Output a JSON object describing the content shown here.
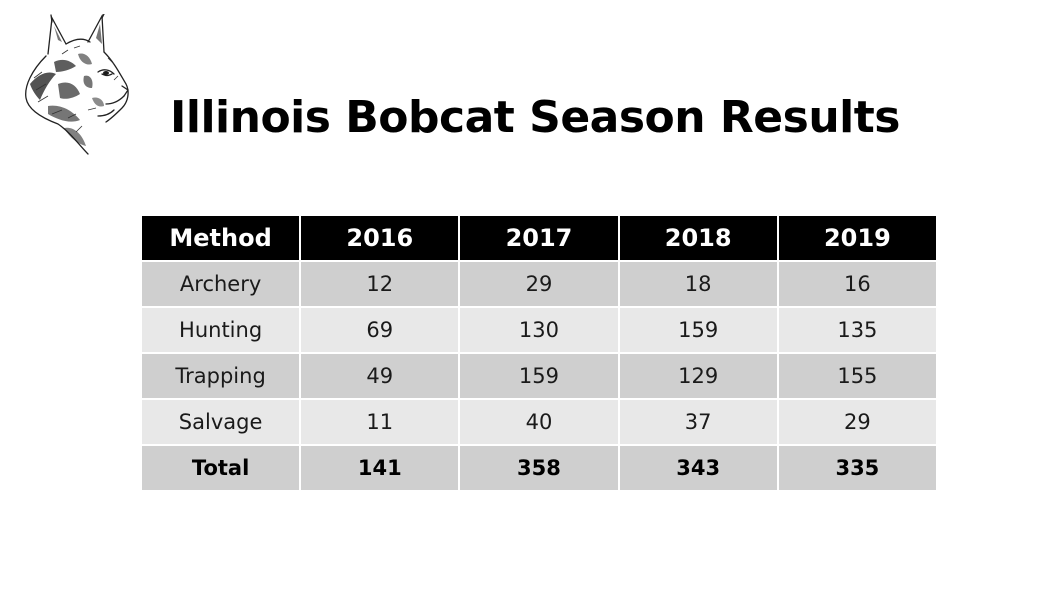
{
  "slide": {
    "title": "Illinois Bobcat Season Results",
    "logo_icon": "bobcat-head-sketch-icon"
  },
  "table": {
    "headers": [
      "Method",
      "2016",
      "2017",
      "2018",
      "2019"
    ],
    "rows": [
      [
        "Archery",
        "12",
        "29",
        "18",
        "16"
      ],
      [
        "Hunting",
        "69",
        "130",
        "159",
        "135"
      ],
      [
        "Trapping",
        "49",
        "159",
        "129",
        "155"
      ],
      [
        "Salvage",
        "11",
        "40",
        "37",
        "29"
      ]
    ],
    "total": [
      "Total",
      "141",
      "358",
      "343",
      "335"
    ]
  },
  "colors": {
    "header_bg": "#000000",
    "header_text": "#ffffff",
    "row_dark": "#cfcfcf",
    "row_light": "#e8e8e8"
  }
}
